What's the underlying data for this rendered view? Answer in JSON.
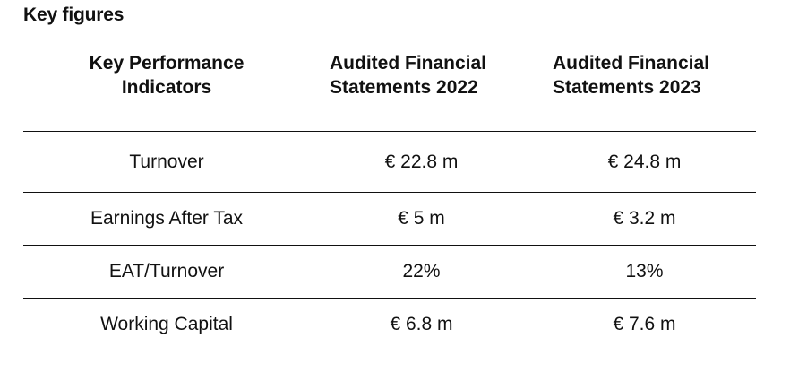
{
  "section": {
    "title": "Key figures"
  },
  "table": {
    "headers": {
      "kpi": [
        "Key Performance",
        "Indicators"
      ],
      "year_2022": [
        "Audited Financial",
        "Statements 2022"
      ],
      "year_2023": [
        "Audited Financial",
        "Statements 2023"
      ]
    },
    "rows": [
      {
        "label": "Turnover",
        "y2022": "€ 22.8 m",
        "y2023": "€ 24.8 m"
      },
      {
        "label": "Earnings After Tax",
        "y2022": "€ 5 m",
        "y2023": "€ 3.2 m"
      },
      {
        "label": "EAT/Turnover",
        "y2022": "22%",
        "y2023": "13%"
      },
      {
        "label": "Working Capital",
        "y2022": "€ 6.8 m",
        "y2023": "€ 7.6 m"
      }
    ]
  }
}
